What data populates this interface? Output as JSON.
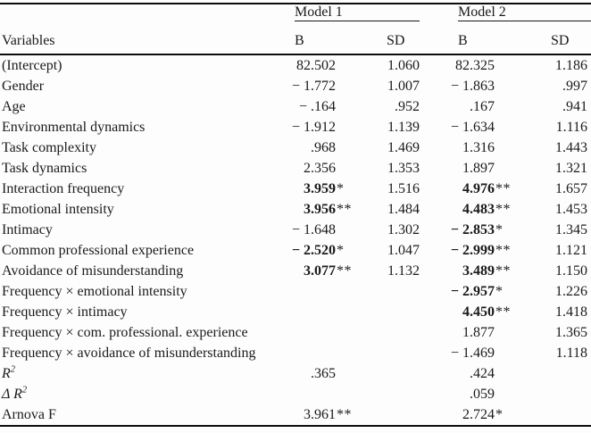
{
  "colors": {
    "background": "#fdfdfd",
    "text": "#1a1a1a",
    "rule": "#0c0c0c"
  },
  "header": {
    "variables_label": "Variables",
    "model1_label": "Model 1",
    "model2_label": "Model 2",
    "b_label": "B",
    "sd_label": "SD"
  },
  "table": {
    "rows": [
      {
        "label": "(Intercept)",
        "m1_b": "82.502",
        "m1_b_stars": "",
        "m1_b_bold": false,
        "m1_sd": "1.060",
        "m2_b": "82.325",
        "m2_b_stars": "",
        "m2_b_bold": false,
        "m2_sd": "1.186"
      },
      {
        "label": "Gender",
        "m1_b": "− 1.772",
        "m1_b_stars": "",
        "m1_b_bold": false,
        "m1_sd": "1.007",
        "m2_b": "− 1.863",
        "m2_b_stars": "",
        "m2_b_bold": false,
        "m2_sd": ".997"
      },
      {
        "label": "Age",
        "m1_b": "− .164",
        "m1_b_stars": "",
        "m1_b_bold": false,
        "m1_sd": ".952",
        "m2_b": ".167",
        "m2_b_stars": "",
        "m2_b_bold": false,
        "m2_sd": ".941"
      },
      {
        "label": "Environmental dynamics",
        "m1_b": "− 1.912",
        "m1_b_stars": "",
        "m1_b_bold": false,
        "m1_sd": "1.139",
        "m2_b": "− 1.634",
        "m2_b_stars": "",
        "m2_b_bold": false,
        "m2_sd": "1.116"
      },
      {
        "label": "Task complexity",
        "m1_b": ".968",
        "m1_b_stars": "",
        "m1_b_bold": false,
        "m1_sd": "1.469",
        "m2_b": "1.316",
        "m2_b_stars": "",
        "m2_b_bold": false,
        "m2_sd": "1.443"
      },
      {
        "label": "Task dynamics",
        "m1_b": "2.356",
        "m1_b_stars": "",
        "m1_b_bold": false,
        "m1_sd": "1.353",
        "m2_b": "1.897",
        "m2_b_stars": "",
        "m2_b_bold": false,
        "m2_sd": "1.321"
      },
      {
        "label": "Interaction frequency",
        "m1_b": "3.959",
        "m1_b_stars": "*",
        "m1_b_bold": true,
        "m1_sd": "1.516",
        "m2_b": "4.976",
        "m2_b_stars": "**",
        "m2_b_bold": true,
        "m2_sd": "1.657"
      },
      {
        "label": "Emotional intensity",
        "m1_b": "3.956",
        "m1_b_stars": "**",
        "m1_b_bold": true,
        "m1_sd": "1.484",
        "m2_b": "4.483",
        "m2_b_stars": "**",
        "m2_b_bold": true,
        "m2_sd": "1.453"
      },
      {
        "label": "Intimacy",
        "m1_b": "− 1.648",
        "m1_b_stars": "",
        "m1_b_bold": false,
        "m1_sd": "1.302",
        "m2_b": "− 2.853",
        "m2_b_stars": "*",
        "m2_b_bold": true,
        "m2_sd": "1.345"
      },
      {
        "label": "Common professional experience",
        "m1_b": "− 2.520",
        "m1_b_stars": "*",
        "m1_b_bold": true,
        "m1_sd": "1.047",
        "m2_b": "− 2.999",
        "m2_b_stars": "**",
        "m2_b_bold": true,
        "m2_sd": "1.121"
      },
      {
        "label": "Avoidance of misunderstanding",
        "m1_b": "3.077",
        "m1_b_stars": "**",
        "m1_b_bold": true,
        "m1_sd": "1.132",
        "m2_b": "3.489",
        "m2_b_stars": "**",
        "m2_b_bold": true,
        "m2_sd": "1.150"
      },
      {
        "label": "Frequency × emotional intensity",
        "m1_b": "",
        "m1_b_stars": "",
        "m1_b_bold": false,
        "m1_sd": "",
        "m2_b": "− 2.957",
        "m2_b_stars": "*",
        "m2_b_bold": true,
        "m2_sd": "1.226"
      },
      {
        "label": "Frequency × intimacy",
        "m1_b": "",
        "m1_b_stars": "",
        "m1_b_bold": false,
        "m1_sd": "",
        "m2_b": "4.450",
        "m2_b_stars": "**",
        "m2_b_bold": true,
        "m2_sd": "1.418"
      },
      {
        "label": "Frequency × com. professional. experience",
        "m1_b": "",
        "m1_b_stars": "",
        "m1_b_bold": false,
        "m1_sd": "",
        "m2_b": "1.877",
        "m2_b_stars": "",
        "m2_b_bold": false,
        "m2_sd": "1.365"
      },
      {
        "label": "Frequency × avoidance of misunderstanding",
        "m1_b": "",
        "m1_b_stars": "",
        "m1_b_bold": false,
        "m1_sd": "",
        "m2_b": "− 1.469",
        "m2_b_stars": "",
        "m2_b_bold": false,
        "m2_sd": "1.118"
      },
      {
        "label": "R",
        "sup": "2",
        "italic": true,
        "m1_b": ".365",
        "m1_b_stars": "",
        "m1_b_bold": false,
        "m1_sd": "",
        "m2_b": ".424",
        "m2_b_stars": "",
        "m2_b_bold": false,
        "m2_sd": ""
      },
      {
        "label": "Δ R",
        "sup": "2",
        "italic": true,
        "m1_b": "",
        "m1_b_stars": "",
        "m1_b_bold": false,
        "m1_sd": "",
        "m2_b": ".059",
        "m2_b_stars": "",
        "m2_b_bold": false,
        "m2_sd": ""
      },
      {
        "label": "Arnova F",
        "m1_b": "3.961",
        "m1_b_stars": "**",
        "m1_b_bold": false,
        "m1_sd": "",
        "m2_b": "2.724",
        "m2_b_stars": "*",
        "m2_b_bold": false,
        "m2_sd": ""
      }
    ]
  }
}
